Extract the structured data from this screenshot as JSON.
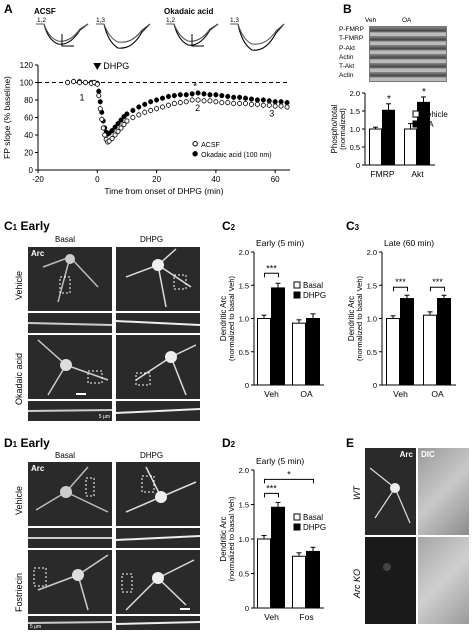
{
  "panel_labels": {
    "A": "A",
    "B": "B",
    "C1": "C",
    "C1_sub": "1",
    "C1_title": "Early",
    "C2": "C",
    "C2_sub": "2",
    "C3": "C",
    "C3_sub": "3",
    "D1": "D",
    "D1_sub": "1",
    "D1_title": "Early",
    "D2": "D",
    "D2_sub": "2",
    "E": "E"
  },
  "traces": {
    "acsf": "ACSF",
    "oa": "Okadaic acid",
    "t1": "1,2",
    "t2": "1,3",
    "t3": "1,2",
    "t4": "1,3"
  },
  "blot": {
    "veh": "Veh",
    "oa": "OA",
    "rows": [
      "P-FMRP",
      "T-FMRP",
      "P-Akt",
      "Actin",
      "T-Akt",
      "Actin"
    ]
  },
  "micro": {
    "c1_cols": [
      "Basal",
      "DHPG"
    ],
    "c1_rows": [
      "Vehicle",
      "Okadaic acid"
    ],
    "arc": "Arc",
    "scale": "5 μm",
    "d1_cols": [
      "Basal",
      "DHPG"
    ],
    "d1_rows": [
      "Vehicle",
      "Fostriecin"
    ],
    "e_cols": [
      "Arc",
      "DIC"
    ],
    "e_rows": [
      "WT",
      "Arc KO"
    ]
  },
  "chart_data": [
    {
      "id": "A",
      "type": "scatter",
      "xlabel": "Time from onset of DHPG (min)",
      "ylabel": "FP slope (% baseline)",
      "xlim": [
        -20,
        65
      ],
      "ylim": [
        0,
        120
      ],
      "xticks": [
        -20,
        0,
        20,
        40,
        60
      ],
      "yticks": [
        0,
        20,
        40,
        60,
        80,
        100,
        120
      ],
      "annotations": [
        "DHPG",
        "1",
        "2",
        "3",
        "*"
      ],
      "series": [
        {
          "name": "ACSF",
          "marker": "open",
          "x": [
            -10,
            -8,
            -6,
            -4,
            -2,
            -1,
            0,
            0.5,
            1,
            1.5,
            2,
            2.5,
            3,
            3.5,
            4,
            5,
            6,
            7,
            8,
            9,
            10,
            12,
            14,
            16,
            18,
            20,
            22,
            24,
            26,
            28,
            30,
            32,
            34,
            36,
            38,
            40,
            42,
            44,
            46,
            48,
            50,
            52,
            54,
            56,
            58,
            60,
            62,
            64
          ],
          "y": [
            100,
            101,
            100,
            100,
            99,
            100,
            98,
            85,
            70,
            58,
            48,
            40,
            35,
            32,
            33,
            36,
            40,
            44,
            48,
            52,
            56,
            60,
            63,
            66,
            68,
            70,
            72,
            74,
            76,
            77,
            78,
            80,
            80,
            79,
            79,
            78,
            77,
            77,
            76,
            76,
            76,
            75,
            75,
            74,
            74,
            73,
            73,
            72
          ]
        },
        {
          "name": "Okadaic acid (100 nm)",
          "marker": "filled",
          "x": [
            -10,
            -8,
            -6,
            -4,
            -2,
            -1,
            0,
            0.5,
            1,
            1.5,
            2,
            2.5,
            3,
            3.5,
            4,
            5,
            6,
            7,
            8,
            9,
            10,
            12,
            14,
            16,
            18,
            20,
            22,
            24,
            26,
            28,
            30,
            32,
            34,
            36,
            38,
            40,
            42,
            44,
            46,
            48,
            50,
            52,
            54,
            56,
            58,
            60,
            62,
            64
          ],
          "y": [
            100,
            101,
            101,
            100,
            100,
            100,
            99,
            90,
            78,
            66,
            56,
            48,
            43,
            41,
            42,
            45,
            49,
            53,
            57,
            61,
            64,
            68,
            72,
            75,
            78,
            80,
            82,
            84,
            85,
            86,
            86,
            87,
            88,
            87,
            86,
            86,
            85,
            84,
            83,
            83,
            82,
            81,
            80,
            80,
            79,
            78,
            78,
            77
          ]
        }
      ]
    },
    {
      "id": "B",
      "type": "bar",
      "ylabel": "Phospho/total (normalized)",
      "ylim": [
        0,
        2
      ],
      "yticks": [
        0,
        0.5,
        1.0,
        1.5,
        2.0
      ],
      "categories": [
        "FMRP",
        "Akt"
      ],
      "series": [
        {
          "name": "Vehicle",
          "values": [
            1.0,
            1.0
          ],
          "err": [
            0.05,
            0.15
          ]
        },
        {
          "name": "OA",
          "values": [
            1.52,
            1.74
          ],
          "err": [
            0.18,
            0.15
          ]
        }
      ],
      "annotations": [
        "*",
        "*"
      ]
    },
    {
      "id": "C2",
      "type": "bar",
      "title": "Early (5 min)",
      "ylabel": "Dendritic Arc (normalized to basal Veh)",
      "ylim": [
        0,
        2.0
      ],
      "yticks": [
        0,
        0.5,
        1.0,
        1.5,
        2.0
      ],
      "categories": [
        "Veh",
        "OA"
      ],
      "series": [
        {
          "name": "Basal",
          "values": [
            1.0,
            0.93
          ],
          "err": [
            0.05,
            0.05
          ]
        },
        {
          "name": "DHPG",
          "values": [
            1.46,
            1.0
          ],
          "err": [
            0.07,
            0.07
          ]
        }
      ],
      "annotations": [
        "***"
      ]
    },
    {
      "id": "C3",
      "type": "bar",
      "title": "Late (60 min)",
      "ylabel": "Dendritic Arc (normalized to basal Veh)",
      "ylim": [
        0,
        2.0
      ],
      "yticks": [
        0,
        0.5,
        1.0,
        1.5,
        2.0
      ],
      "categories": [
        "Veh",
        "OA"
      ],
      "series": [
        {
          "name": "",
          "values": [
            1.0,
            1.05
          ],
          "err": [
            0.04,
            0.05
          ]
        },
        {
          "name": "",
          "values": [
            1.3,
            1.3
          ],
          "err": [
            0.05,
            0.05
          ]
        }
      ],
      "annotations": [
        "***",
        "***"
      ]
    },
    {
      "id": "D2",
      "type": "bar",
      "title": "Early (5 min)",
      "ylabel": "Dendritic Arc (normalized to basal Veh)",
      "ylim": [
        0,
        2.0
      ],
      "yticks": [
        0,
        0.5,
        1.0,
        1.5,
        2.0
      ],
      "categories": [
        "Veh",
        "Fos"
      ],
      "series": [
        {
          "name": "Basal",
          "values": [
            1.0,
            0.75
          ],
          "err": [
            0.05,
            0.05
          ]
        },
        {
          "name": "DHPG",
          "values": [
            1.46,
            0.82
          ],
          "err": [
            0.07,
            0.06
          ]
        }
      ],
      "annotations": [
        "***",
        "*"
      ]
    }
  ]
}
